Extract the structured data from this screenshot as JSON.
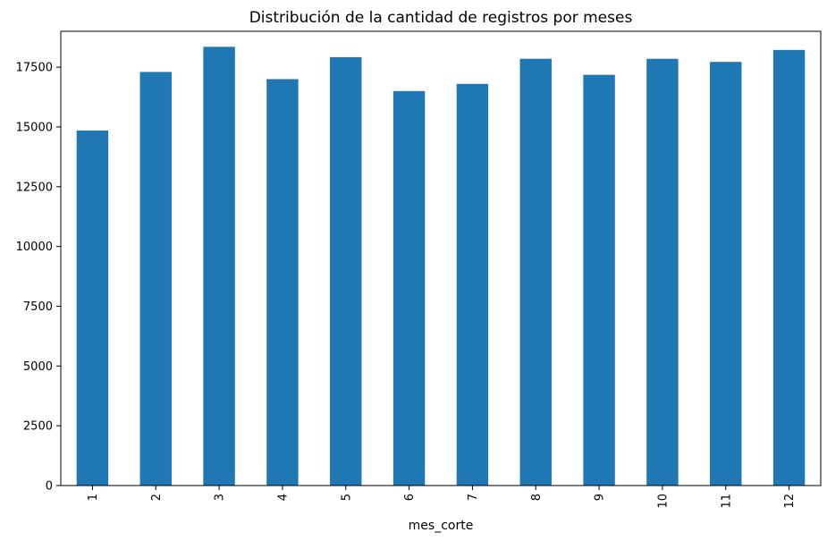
{
  "chart_data": {
    "type": "bar",
    "title": "Distribución de la cantidad de registros por meses",
    "xlabel": "mes_corte",
    "ylabel": "",
    "categories": [
      "1",
      "2",
      "3",
      "4",
      "5",
      "6",
      "7",
      "8",
      "9",
      "10",
      "11",
      "12"
    ],
    "values": [
      14850,
      17300,
      18350,
      17000,
      17920,
      16500,
      16800,
      17850,
      17180,
      17850,
      17720,
      18220
    ],
    "ylim": [
      0,
      19000
    ],
    "yticks": [
      "0",
      "2500",
      "5000",
      "7500",
      "10000",
      "12500",
      "15000",
      "17500"
    ],
    "grid": false,
    "legend": "none",
    "colors": {
      "bar": "#1f77b4",
      "axis": "#000000",
      "background": "#ffffff"
    }
  }
}
